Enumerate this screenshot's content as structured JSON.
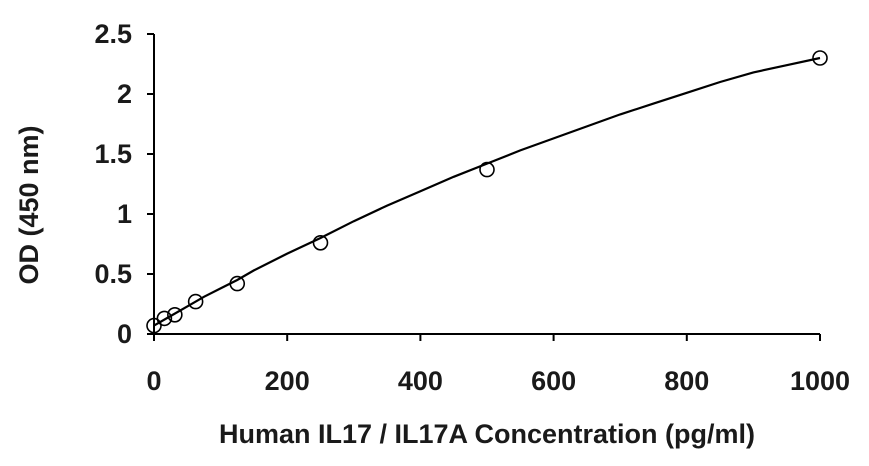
{
  "chart_data": {
    "type": "scatter",
    "title": "",
    "xlabel": "Human IL17 / IL17A Concentration (pg/ml)",
    "ylabel": "OD (450 nm)",
    "xlim": [
      0,
      1000
    ],
    "ylim": [
      0,
      2.5
    ],
    "x_ticks": [
      "0",
      "200",
      "400",
      "600",
      "800",
      "1000"
    ],
    "y_ticks": [
      "0",
      "0.5",
      "1",
      "1.5",
      "2",
      "2.5"
    ],
    "grid": false,
    "legend": "none",
    "series": [
      {
        "marker": "open-circle",
        "x": [
          0,
          15.6,
          31.3,
          62.5,
          125,
          250,
          500,
          1000
        ],
        "y": [
          0.07,
          0.13,
          0.16,
          0.27,
          0.42,
          0.76,
          1.37,
          2.3
        ]
      }
    ],
    "fit_curve": {
      "style": "solid-line",
      "x": [
        0,
        25,
        50,
        75,
        100,
        125,
        150,
        200,
        250,
        300,
        350,
        400,
        450,
        500,
        550,
        600,
        650,
        700,
        750,
        800,
        850,
        900,
        950,
        1000
      ],
      "y": [
        0.07,
        0.15,
        0.23,
        0.31,
        0.38,
        0.45,
        0.53,
        0.67,
        0.8,
        0.94,
        1.07,
        1.19,
        1.31,
        1.42,
        1.53,
        1.63,
        1.73,
        1.83,
        1.92,
        2.01,
        2.1,
        2.18,
        2.24,
        2.3
      ]
    },
    "colors": {
      "axis": "#000000",
      "text": "#1a1a1a",
      "curve": "#000000",
      "marker_stroke": "#000000",
      "background": "#ffffff"
    }
  }
}
